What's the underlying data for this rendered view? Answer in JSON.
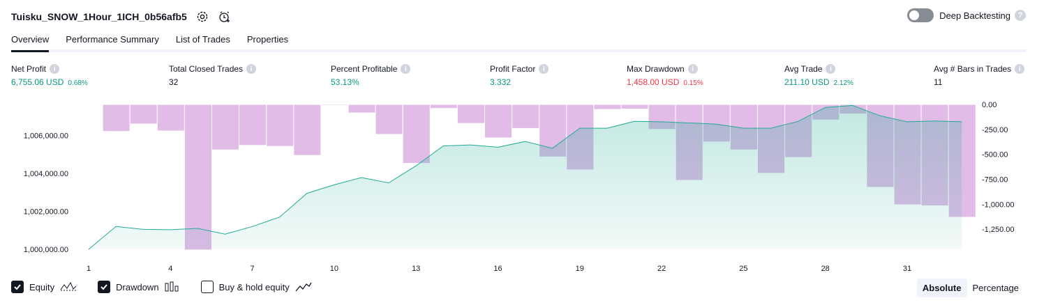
{
  "header": {
    "title": "Tuisku_SNOW_1Hour_1ICH_0b56afb5",
    "icons": [
      "settings-icon",
      "add-alert-icon"
    ]
  },
  "deep_backtesting": {
    "label": "Deep Backtesting",
    "enabled": false
  },
  "tabs": [
    {
      "label": "Overview",
      "active": true
    },
    {
      "label": "Performance Summary",
      "active": false
    },
    {
      "label": "List of Trades",
      "active": false
    },
    {
      "label": "Properties",
      "active": false
    }
  ],
  "metrics": {
    "net_profit": {
      "label": "Net Profit",
      "value": "6,755.06 USD",
      "pct": "0.68%"
    },
    "total_closed_trades": {
      "label": "Total Closed Trades",
      "value": "32"
    },
    "percent_profitable": {
      "label": "Percent Profitable",
      "value": "53.13%"
    },
    "profit_factor": {
      "label": "Profit Factor",
      "value": "3.332"
    },
    "max_drawdown": {
      "label": "Max Drawdown",
      "value": "1,458.00 USD",
      "pct": "0.15%"
    },
    "avg_trade": {
      "label": "Avg Trade",
      "value": "211.10 USD",
      "pct": "2.12%"
    },
    "avg_bars": {
      "label": "Avg # Bars in Trades",
      "value": "11"
    }
  },
  "chart_data": {
    "type": "area",
    "x_ticks": [
      "1",
      "4",
      "7",
      "10",
      "13",
      "16",
      "19",
      "22",
      "25",
      "28",
      "31"
    ],
    "left_axis_ticks": [
      "1,006,000.00",
      "1,004,000.00",
      "1,002,000.00",
      "1,000,000.00"
    ],
    "right_axis_ticks": [
      "0.00",
      "-250.00",
      "-500.00",
      "-750.00",
      "-1,000.00",
      "-1,250.00"
    ],
    "equity_ylim": [
      999500,
      1007700
    ],
    "drawdown_ylim": [
      -1458,
      0
    ],
    "series": [
      {
        "name": "Equity",
        "type": "area",
        "color": "#22ab94",
        "x": [
          1,
          2,
          3,
          4,
          5,
          6,
          7,
          8,
          9,
          10,
          11,
          12,
          13,
          14,
          15,
          16,
          17,
          18,
          19,
          20,
          21,
          22,
          23,
          24,
          25,
          26,
          27,
          28,
          29,
          30,
          31,
          32,
          33
        ],
        "values": [
          1000000,
          1001200,
          1001050,
          1001030,
          1001100,
          1000800,
          1001200,
          1001700,
          1002950,
          1003400,
          1003780,
          1003500,
          1004400,
          1005450,
          1005500,
          1005380,
          1005680,
          1005330,
          1006380,
          1006380,
          1006740,
          1006720,
          1006660,
          1006600,
          1006380,
          1006380,
          1006740,
          1007480,
          1007580,
          1007040,
          1006720,
          1006760,
          1006720
        ]
      },
      {
        "name": "Drawdown",
        "type": "bar",
        "color": "#ce93d8",
        "x": [
          0,
          1,
          2,
          3,
          4,
          5,
          6,
          7,
          8,
          9,
          10,
          11,
          12,
          13,
          14,
          15,
          16,
          17,
          18,
          19,
          20,
          21,
          22,
          23,
          24,
          25,
          26,
          27,
          28,
          29,
          30,
          31,
          32,
          33
        ],
        "values": [
          0,
          -270,
          -195,
          -265,
          -1458,
          -455,
          -410,
          -420,
          -510,
          -10,
          -85,
          -300,
          -590,
          -40,
          -190,
          -335,
          -240,
          -525,
          -655,
          -50,
          -45,
          -250,
          -760,
          -375,
          -455,
          -690,
          -530,
          -155,
          -95,
          -830,
          -1005,
          -1015,
          -1130,
          0
        ]
      }
    ]
  },
  "legend": [
    {
      "label": "Equity",
      "checked": true,
      "icon": "equity-line-icon"
    },
    {
      "label": "Drawdown",
      "checked": true,
      "icon": "drawdown-bars-icon"
    },
    {
      "label": "Buy & hold equity",
      "checked": false,
      "icon": "buy-hold-line-icon"
    }
  ],
  "modes": [
    {
      "label": "Absolute",
      "active": true
    },
    {
      "label": "Percentage",
      "active": false
    }
  ]
}
